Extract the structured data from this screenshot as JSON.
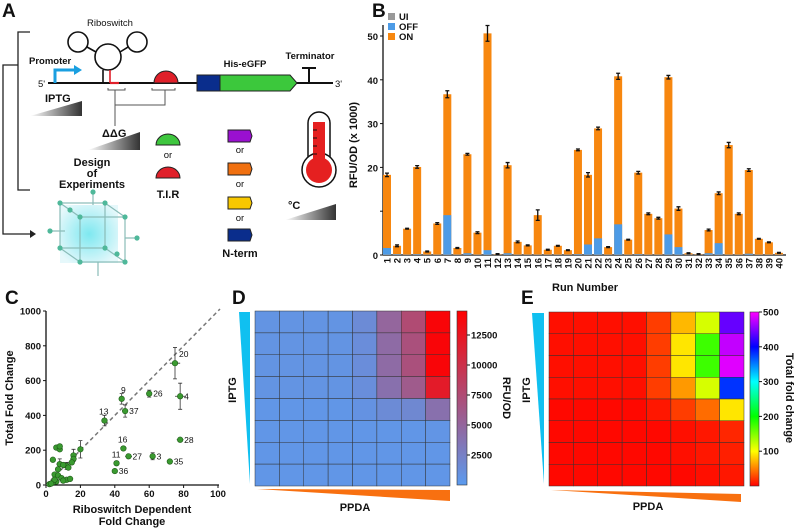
{
  "panels": {
    "a": "A",
    "b": "B",
    "c": "C",
    "d": "D",
    "e": "E"
  },
  "diagram": {
    "riboswitch": "Riboswitch",
    "promoter": "Promoter",
    "five_prime": "5'",
    "three_prime": "3'",
    "his_egfp": "His-eGFP",
    "terminator": "Terminator",
    "iptg": "IPTG",
    "ddg": "ΔΔG",
    "or": "or",
    "tir": "T.I.R",
    "nterm": "N-term",
    "celsius": "°C",
    "doe": [
      "Design",
      "of",
      "Experiments"
    ],
    "colors": {
      "promoter": "#1a9fe0",
      "rbs": "#e0202a",
      "rbs_alt": "#3ec63e",
      "nterm": "#0a2d8c",
      "egfp": "#3cc83c",
      "tags": [
        "#9a10d0",
        "#f07010",
        "#f8c800",
        "#0a2d8c"
      ]
    }
  },
  "chart_data": [
    {
      "type": "bar",
      "panel": "B",
      "ylabel": "RFU/OD (x 1000)",
      "xlabel": "Run Number",
      "ylim": [
        0,
        52
      ],
      "yticks": [
        0,
        20,
        30,
        40,
        50
      ],
      "legend_position": "top-left",
      "categories": [
        "1",
        "2",
        "3",
        "4",
        "5",
        "6",
        "7",
        "8",
        "9",
        "10",
        "11",
        "12",
        "13",
        "14",
        "15",
        "16",
        "17",
        "18",
        "19",
        "20",
        "21",
        "22",
        "23",
        "24",
        "25",
        "26",
        "27",
        "28",
        "29",
        "30",
        "31",
        "32",
        "33",
        "34",
        "35",
        "36",
        "37",
        "38",
        "39",
        "40"
      ],
      "series": [
        {
          "name": "UI",
          "color": "#999999",
          "values": [
            0.1,
            0.1,
            0.1,
            0.1,
            0.1,
            0.1,
            0.1,
            0.1,
            0.1,
            0.1,
            0.1,
            0.1,
            0.1,
            0.1,
            0.1,
            0.1,
            0.1,
            0.1,
            0.1,
            0.1,
            0.1,
            0.1,
            0.1,
            0.1,
            0.1,
            0.1,
            0.1,
            0.1,
            0.1,
            0.1,
            0.1,
            0.1,
            0.1,
            0.1,
            0.1,
            0.1,
            0.1,
            0.1,
            0.1,
            0.1
          ]
        },
        {
          "name": "OFF",
          "color": "#4d9be6",
          "values": [
            1.6,
            0.2,
            0.1,
            0.2,
            0.1,
            0.1,
            9.1,
            0.1,
            0.4,
            0.1,
            1.1,
            0.1,
            0.4,
            0.1,
            0.1,
            0.1,
            0.1,
            0.1,
            0.1,
            0.2,
            2.4,
            3.8,
            0.1,
            7.0,
            0.1,
            0.2,
            0.1,
            0.1,
            4.7,
            1.8,
            0.1,
            0.1,
            0.4,
            2.7,
            0.1,
            0.1,
            0.3,
            0.1,
            0.1,
            0.1
          ]
        },
        {
          "name": "ON",
          "color": "#f7870f",
          "values": [
            18.3,
            2.1,
            6.0,
            20.1,
            0.8,
            7.2,
            36.7,
            1.6,
            23.0,
            5.1,
            50.6,
            0.2,
            20.5,
            3.0,
            2.2,
            9.1,
            1.2,
            2.1,
            1.1,
            24.0,
            18.3,
            28.9,
            1.8,
            40.8,
            3.5,
            18.8,
            9.4,
            8.4,
            40.6,
            10.6,
            0.4,
            0.2,
            5.7,
            14.1,
            25.1,
            9.4,
            19.4,
            3.7,
            2.9,
            0.5
          ]
        }
      ],
      "on_error": [
        0.4,
        0.2,
        0.1,
        0.3,
        0.1,
        0.2,
        0.8,
        0.1,
        0.2,
        0.2,
        1.8,
        0.1,
        0.6,
        0.2,
        0.1,
        1.2,
        0.1,
        0.1,
        0.1,
        0.2,
        0.5,
        0.3,
        0.1,
        0.7,
        0.1,
        0.3,
        0.2,
        0.2,
        0.4,
        0.4,
        0.1,
        0.1,
        0.2,
        0.3,
        0.6,
        0.2,
        0.3,
        0.1,
        0.1,
        0.1
      ]
    },
    {
      "type": "scatter",
      "panel": "C",
      "xlabel": [
        "Riboswitch Dependent",
        "Fold Change"
      ],
      "ylabel": "Total Fold Change",
      "xlim": [
        0,
        100
      ],
      "ylim": [
        0,
        1000
      ],
      "xticks": [
        0,
        20,
        40,
        60,
        80,
        100
      ],
      "yticks": [
        0,
        200,
        400,
        600,
        800,
        1000
      ],
      "reference_line": "dashed diagonal",
      "color": "#3a9a30",
      "points": [
        {
          "x": 75,
          "y": 700,
          "xerr": 3,
          "yerr": 90,
          "label": "20"
        },
        {
          "x": 78,
          "y": 510,
          "xerr": 3,
          "yerr": 75,
          "label": "4"
        },
        {
          "x": 60,
          "y": 525,
          "xerr": 0.5,
          "yerr": 20,
          "label": "26"
        },
        {
          "x": 44,
          "y": 495,
          "xerr": 1,
          "yerr": 30,
          "label": "9"
        },
        {
          "x": 46,
          "y": 425,
          "xerr": 1,
          "yerr": 35,
          "label": "37"
        },
        {
          "x": 34,
          "y": 370,
          "xerr": 1.5,
          "yerr": 30,
          "label": "13"
        },
        {
          "x": 45,
          "y": 210,
          "xerr": 1.5,
          "yerr": 10,
          "label": "16"
        },
        {
          "x": 78,
          "y": 260,
          "xerr": 2,
          "yerr": 5,
          "label": "28"
        },
        {
          "x": 48,
          "y": 165,
          "xerr": 2,
          "yerr": 5,
          "label": "27"
        },
        {
          "x": 62,
          "y": 165,
          "xerr": 1,
          "yerr": 20,
          "label": "3"
        },
        {
          "x": 41,
          "y": 125,
          "xerr": 0.5,
          "yerr": 5,
          "label": "11"
        },
        {
          "x": 72,
          "y": 135,
          "xerr": 1,
          "yerr": 5,
          "label": "35"
        },
        {
          "x": 40,
          "y": 80,
          "xerr": 1,
          "yerr": 5,
          "label": "36"
        },
        {
          "x": 20,
          "y": 205,
          "xerr": 1,
          "yerr": 50,
          "label": ""
        },
        {
          "x": 16,
          "y": 170,
          "xerr": 0.5,
          "yerr": 35,
          "label": ""
        },
        {
          "x": 16,
          "y": 150,
          "xerr": 0.5,
          "yerr": 10,
          "label": ""
        },
        {
          "x": 15,
          "y": 130,
          "xerr": 0.5,
          "yerr": 10,
          "label": ""
        },
        {
          "x": 8,
          "y": 120,
          "xerr": 2,
          "yerr": 30,
          "label": ""
        },
        {
          "x": 12,
          "y": 110,
          "xerr": 2,
          "yerr": 20,
          "label": ""
        },
        {
          "x": 10,
          "y": 115,
          "xerr": 1,
          "yerr": 10,
          "label": ""
        },
        {
          "x": 13,
          "y": 100,
          "xerr": 1,
          "yerr": 10,
          "label": ""
        },
        {
          "x": 6,
          "y": 215,
          "xerr": 0.5,
          "yerr": 5,
          "label": ""
        },
        {
          "x": 8,
          "y": 205,
          "xerr": 0.5,
          "yerr": 5,
          "label": ""
        },
        {
          "x": 8,
          "y": 222,
          "xerr": 0.5,
          "yerr": 5,
          "label": ""
        },
        {
          "x": 4,
          "y": 145,
          "xerr": 0.5,
          "yerr": 5,
          "label": ""
        },
        {
          "x": 7,
          "y": 90,
          "xerr": 0.5,
          "yerr": 5,
          "label": ""
        },
        {
          "x": 5,
          "y": 60,
          "xerr": 0.5,
          "yerr": 5,
          "label": ""
        },
        {
          "x": 7,
          "y": 55,
          "xerr": 0.5,
          "yerr": 5,
          "label": ""
        },
        {
          "x": 9,
          "y": 40,
          "xerr": 0.5,
          "yerr": 5,
          "label": ""
        },
        {
          "x": 12,
          "y": 30,
          "xerr": 0.5,
          "yerr": 5,
          "label": ""
        },
        {
          "x": 14,
          "y": 35,
          "xerr": 0.5,
          "yerr": 5,
          "label": ""
        },
        {
          "x": 10,
          "y": 25,
          "xerr": 0.5,
          "yerr": 5,
          "label": ""
        },
        {
          "x": 6,
          "y": 20,
          "xerr": 0.5,
          "yerr": 5,
          "label": ""
        },
        {
          "x": 4,
          "y": 15,
          "xerr": 0.5,
          "yerr": 5,
          "label": ""
        },
        {
          "x": 2,
          "y": 5,
          "xerr": 0.5,
          "yerr": 5,
          "label": ""
        },
        {
          "x": 5,
          "y": 30,
          "xerr": 0.5,
          "yerr": 5,
          "label": ""
        },
        {
          "x": 3,
          "y": 8,
          "xerr": 0.5,
          "yerr": 5,
          "label": ""
        }
      ]
    },
    {
      "type": "heatmap",
      "panel": "D",
      "xlabel": "PPDA",
      "ylabel": "IPTG",
      "colorbar_label": "RFU/OD",
      "colorbar_ticks": [
        2500,
        5000,
        7500,
        10000,
        12500
      ],
      "zlim": [
        0,
        14500
      ],
      "colorscale": [
        "#5b9bef",
        "#ff0000"
      ],
      "rows": [
        [
          700,
          700,
          700,
          700,
          1500,
          5000,
          7500,
          14000
        ],
        [
          700,
          700,
          700,
          700,
          1300,
          4500,
          7000,
          14000
        ],
        [
          700,
          700,
          700,
          700,
          1300,
          4500,
          7000,
          14000
        ],
        [
          700,
          700,
          700,
          700,
          1200,
          4000,
          6000,
          12000
        ],
        [
          500,
          500,
          500,
          500,
          800,
          1500,
          1800,
          4000
        ],
        [
          500,
          500,
          500,
          500,
          500,
          500,
          500,
          600
        ],
        [
          500,
          500,
          500,
          500,
          500,
          500,
          500,
          500
        ],
        [
          500,
          500,
          500,
          500,
          500,
          500,
          500,
          500
        ]
      ]
    },
    {
      "type": "heatmap",
      "panel": "E",
      "xlabel": "PPDA",
      "ylabel": "IPTG",
      "colorbar_label": "Total fold change",
      "colorbar_ticks": [
        100,
        200,
        300,
        400,
        500
      ],
      "zlim": [
        0,
        500
      ],
      "colorscale": [
        "#ff0000",
        "#ff8000",
        "#ffff00",
        "#00ff00",
        "#00ffff",
        "#0000ff",
        "#ff00ff"
      ],
      "rows": [
        [
          10,
          10,
          10,
          10,
          40,
          120,
          180,
          450
        ],
        [
          10,
          10,
          10,
          10,
          40,
          150,
          230,
          480
        ],
        [
          10,
          10,
          10,
          10,
          40,
          150,
          230,
          490
        ],
        [
          10,
          10,
          10,
          10,
          40,
          100,
          180,
          400
        ],
        [
          5,
          5,
          5,
          5,
          15,
          40,
          70,
          150
        ],
        [
          5,
          5,
          5,
          5,
          5,
          10,
          15,
          25
        ],
        [
          5,
          5,
          5,
          5,
          5,
          10,
          15,
          20
        ],
        [
          5,
          5,
          5,
          5,
          5,
          5,
          10,
          15
        ]
      ]
    }
  ]
}
